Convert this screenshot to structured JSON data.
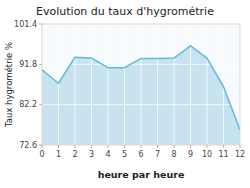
{
  "chart_data": {
    "type": "area",
    "title": "Evolution du taux d'hygrométrie",
    "xlabel": "heure par heure",
    "ylabel": "Taux hygrométrie %",
    "x": [
      0,
      1,
      2,
      3,
      4,
      5,
      6,
      7,
      8,
      9,
      10,
      11,
      12
    ],
    "values": [
      90.5,
      87.3,
      93.5,
      93.3,
      91.0,
      91.0,
      93.2,
      93.2,
      93.3,
      96.2,
      93.3,
      86.5,
      76.2
    ],
    "xlim": [
      0,
      12
    ],
    "ylim": [
      72.6,
      101.4
    ],
    "xticks": [
      0,
      1,
      2,
      3,
      4,
      5,
      6,
      7,
      8,
      9,
      10,
      11,
      12
    ],
    "yticks": [
      72.6,
      82.2,
      91.8,
      101.4
    ],
    "color": "#6ab8d4",
    "grid": true
  }
}
